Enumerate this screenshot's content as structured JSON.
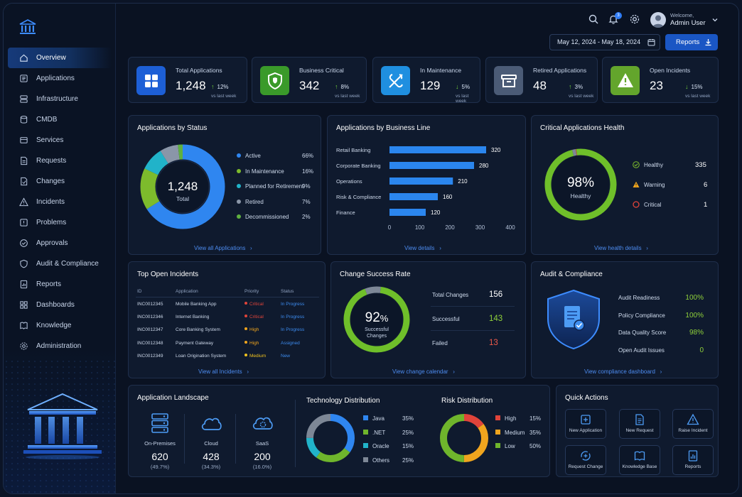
{
  "sidebar": {
    "items": [
      {
        "label": "Overview"
      },
      {
        "label": "Applications"
      },
      {
        "label": "Infrastructure"
      },
      {
        "label": "CMDB"
      },
      {
        "label": "Services"
      },
      {
        "label": "Requests"
      },
      {
        "label": "Changes"
      },
      {
        "label": "Incidents"
      },
      {
        "label": "Problems"
      },
      {
        "label": "Approvals"
      },
      {
        "label": "Audit & Compliance"
      },
      {
        "label": "Reports"
      },
      {
        "label": "Dashboards"
      },
      {
        "label": "Knowledge"
      },
      {
        "label": "Administration"
      }
    ]
  },
  "header": {
    "notification_count": "3",
    "welcome": "Welcome,",
    "user": "Admin User",
    "date_range": "May 12, 2024 - May 18, 2024",
    "reports_label": "Reports"
  },
  "kpis": [
    {
      "label": "Total Applications",
      "value": "1,248",
      "trend": "12%",
      "dir": "up",
      "sub": "vs last week",
      "color": "#1d5fd6",
      "icon": "grid-icon"
    },
    {
      "label": "Business Critical",
      "value": "342",
      "trend": "8%",
      "dir": "up",
      "sub": "vs last week",
      "color": "#3a9a2a",
      "icon": "shield-icon"
    },
    {
      "label": "In Maintenance",
      "value": "129",
      "trend": "5%",
      "dir": "down",
      "sub": "vs last week",
      "color": "#1f8fe0",
      "icon": "tools-icon"
    },
    {
      "label": "Retired Applications",
      "value": "48",
      "trend": "3%",
      "dir": "up",
      "sub": "vs last week",
      "color": "#4b5b76",
      "icon": "archive-icon"
    },
    {
      "label": "Open Incidents",
      "value": "23",
      "trend": "15%",
      "dir": "down",
      "sub": "vs last week",
      "color": "#63a52c",
      "icon": "warning-icon"
    }
  ],
  "status_card": {
    "title": "Applications by Status",
    "center_value": "1,248",
    "center_label": "Total",
    "link": "View all Applications",
    "chart_data": {
      "type": "pie",
      "categories": [
        "Active",
        "In Maintenance",
        "Planned for Retirement",
        "Retired",
        "Decommissioned"
      ],
      "values": [
        66,
        16,
        9,
        7,
        2
      ],
      "labels": [
        "66%",
        "16%",
        "9%",
        "7%",
        "2%"
      ],
      "colors": [
        "#2f86f0",
        "#7dbb2c",
        "#21b3c9",
        "#8a96a8",
        "#5fb040"
      ]
    }
  },
  "business_card": {
    "title": "Applications by Business Line",
    "link": "View details",
    "chart_data": {
      "type": "bar",
      "categories": [
        "Retail Banking",
        "Corporate Banking",
        "Operations",
        "Risk & Compliance",
        "Finance"
      ],
      "values": [
        320,
        280,
        210,
        160,
        120
      ],
      "xticks": [
        "0",
        "100",
        "200",
        "300",
        "400"
      ],
      "xlim": [
        0,
        400
      ],
      "color": "#2b86ee"
    }
  },
  "health_card": {
    "title": "Critical Applications Health",
    "center_value": "98%",
    "center_label": "Healthy",
    "link": "View health details",
    "rows": [
      {
        "label": "Healthy",
        "value": "335"
      },
      {
        "label": "Warning",
        "value": "6"
      },
      {
        "label": "Critical",
        "value": "1"
      }
    ],
    "chart_data": {
      "type": "pie",
      "categories": [
        "Healthy",
        "Warning",
        "Critical"
      ],
      "values": [
        98,
        1.6,
        0.4
      ],
      "colors": [
        "#6fbf2a",
        "#7d8796",
        "#e0443a"
      ]
    }
  },
  "incidents_card": {
    "title": "Top Open Incidents",
    "headers": [
      "ID",
      "Application",
      "Priority",
      "Status"
    ],
    "rows": [
      {
        "id": "INC0012345",
        "app": "Mobile Banking App",
        "priority": "Critical",
        "status": "In Progress",
        "pcolor": "#e0443a"
      },
      {
        "id": "INC0012346",
        "app": "Internet Banking",
        "priority": "Critical",
        "status": "In Progress",
        "pcolor": "#e0443a"
      },
      {
        "id": "INC0012347",
        "app": "Core Banking System",
        "priority": "High",
        "status": "In Progress",
        "pcolor": "#f0a51e"
      },
      {
        "id": "INC0012348",
        "app": "Payment Gateway",
        "priority": "High",
        "status": "Assigned",
        "pcolor": "#f0a51e"
      },
      {
        "id": "INC0012349",
        "app": "Loan Origination System",
        "priority": "Medium",
        "status": "New",
        "pcolor": "#f0c21e"
      }
    ],
    "link": "View all Incidents"
  },
  "change_card": {
    "title": "Change Success Rate",
    "center_value": "92",
    "center_unit": "%",
    "center_label_1": "Successful",
    "center_label_2": "Changes",
    "success_fraction": 0.92,
    "rows": [
      {
        "label": "Total Changes",
        "value": "156",
        "color": "#ffffff"
      },
      {
        "label": "Successful",
        "value": "143",
        "color": "#8fd13a"
      },
      {
        "label": "Failed",
        "value": "13",
        "color": "#f05a4a"
      }
    ],
    "link": "View change calendar"
  },
  "audit_card": {
    "title": "Audit & Compliance",
    "rows": [
      {
        "label": "Audit Readiness",
        "value": "100%"
      },
      {
        "label": "Policy Compliance",
        "value": "100%"
      },
      {
        "label": "Data Quality Score",
        "value": "98%"
      },
      {
        "label": "Open Audit Issues",
        "value": "0"
      }
    ],
    "link": "View compliance dashboard"
  },
  "landscape_card": {
    "title": "Application Landscape",
    "items": [
      {
        "label": "On-Premises",
        "value": "620",
        "pct": "(49.7%)",
        "icon": "server-icon"
      },
      {
        "label": "Cloud",
        "value": "428",
        "pct": "(34.3%)",
        "icon": "cloud-icon"
      },
      {
        "label": "SaaS",
        "value": "200",
        "pct": "(16.0%)",
        "icon": "saas-cloud-icon"
      }
    ]
  },
  "tech_card": {
    "title": "Technology Distribution",
    "chart_data": {
      "type": "pie",
      "categories": [
        "Java",
        ".NET",
        "Oracle",
        "Others"
      ],
      "values": [
        35,
        25,
        15,
        25
      ],
      "labels": [
        "35%",
        "25%",
        "15%",
        "25%"
      ],
      "colors": [
        "#2f86f0",
        "#6fb52c",
        "#21b3c9",
        "#7d8796"
      ]
    }
  },
  "risk_card": {
    "title": "Risk Distribution",
    "chart_data": {
      "type": "pie",
      "categories": [
        "High",
        "Medium",
        "Low"
      ],
      "values": [
        15,
        35,
        50
      ],
      "labels": [
        "15%",
        "35%",
        "50%"
      ],
      "colors": [
        "#e0443a",
        "#f0a51e",
        "#6fb52c"
      ]
    }
  },
  "quick_actions": {
    "title": "Quick Actions",
    "items": [
      {
        "label": "New Application",
        "icon": "add-application-icon"
      },
      {
        "label": "New Request",
        "icon": "document-icon"
      },
      {
        "label": "Raise Incident",
        "icon": "alert-icon"
      },
      {
        "label": "Request Change",
        "icon": "refresh-icon"
      },
      {
        "label": "Knowledge Base",
        "icon": "book-icon"
      },
      {
        "label": "Reports",
        "icon": "report-icon"
      }
    ]
  }
}
